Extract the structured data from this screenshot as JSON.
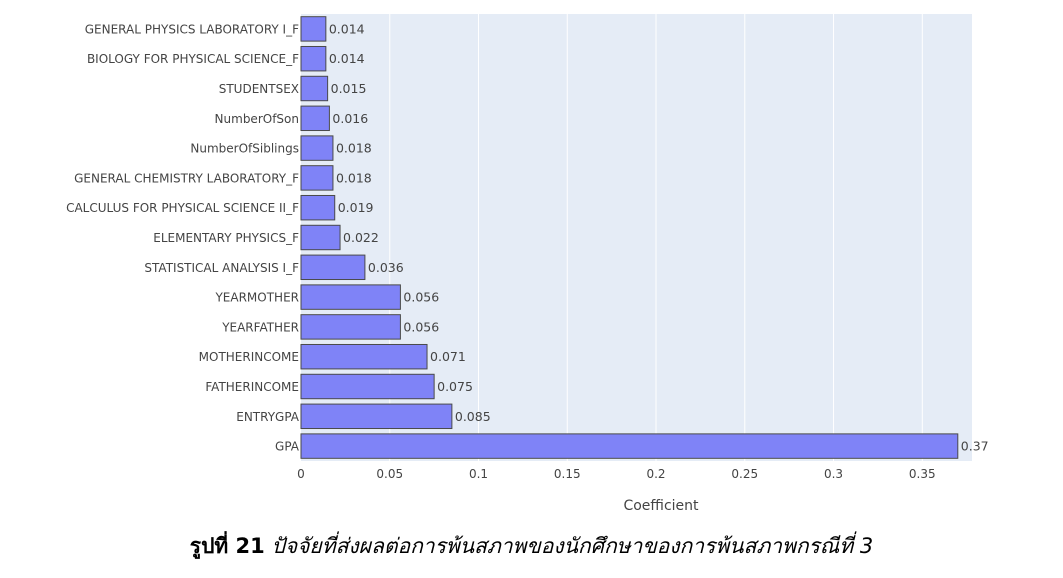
{
  "chart_data": {
    "type": "bar",
    "orientation": "horizontal",
    "categories": [
      "GENERAL PHYSICS LABORATORY I_F",
      "BIOLOGY FOR PHYSICAL SCIENCE_F",
      "STUDENTSEX",
      "NumberOfSon",
      "NumberOfSiblings",
      "GENERAL CHEMISTRY LABORATORY_F",
      "CALCULUS  FOR PHYSICAL SCIENCE II_F",
      "ELEMENTARY PHYSICS_F",
      "STATISTICAL ANALYSIS I_F",
      "YEARMOTHER",
      "YEARFATHER",
      "MOTHERINCOME",
      "FATHERINCOME",
      "ENTRYGPA",
      "GPA"
    ],
    "values": [
      0.014,
      0.014,
      0.015,
      0.016,
      0.018,
      0.018,
      0.019,
      0.022,
      0.036,
      0.056,
      0.056,
      0.071,
      0.075,
      0.085,
      0.37
    ],
    "value_labels": [
      "0.014",
      "0.014",
      "0.015",
      "0.016",
      "0.018",
      "0.018",
      "0.019",
      "0.022",
      "0.036",
      "0.056",
      "0.056",
      "0.071",
      "0.075",
      "0.085",
      "0.37"
    ],
    "xlabel": "Coefficient",
    "ylabel": "",
    "xlim": [
      0,
      0.378
    ],
    "xticks": [
      0,
      0.05,
      0.1,
      0.15,
      0.2,
      0.25,
      0.3,
      0.35
    ],
    "xtick_labels": [
      "0",
      "0.05",
      "0.1",
      "0.15",
      "0.2",
      "0.25",
      "0.3",
      "0.35"
    ],
    "grid": true,
    "colors": {
      "bar": "#7f83f7",
      "bar_edge": "#4a4a4a",
      "plot_bg": "#e5ecf6",
      "grid": "#ffffff"
    }
  },
  "caption": {
    "number": "รูปที่ 21",
    "text": "ปัจจัยที่ส่งผลต่อการพ้นสภาพของนักศึกษาของการพ้นสภาพกรณีที่ 3"
  }
}
